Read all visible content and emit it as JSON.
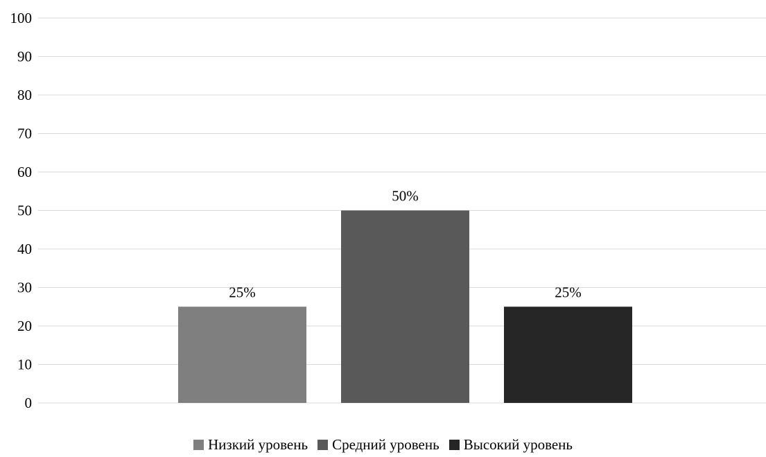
{
  "chart_data": {
    "type": "bar",
    "title": "",
    "xlabel": "",
    "ylabel": "",
    "ylim": [
      0,
      100
    ],
    "yticks": [
      0,
      10,
      20,
      30,
      40,
      50,
      60,
      70,
      80,
      90,
      100
    ],
    "grid": true,
    "legend_position": "bottom",
    "categories": [
      "Низкий уровень",
      "Средний уровень",
      "Высокий уровень"
    ],
    "values": [
      25,
      50,
      25
    ],
    "data_labels": [
      "25%",
      "50%",
      "25%"
    ],
    "colors": [
      "#7f7f7f",
      "#595959",
      "#262626"
    ]
  },
  "legend": {
    "items": [
      {
        "label": "Низкий уровень",
        "color": "#7f7f7f"
      },
      {
        "label": "Средний уровень",
        "color": "#595959"
      },
      {
        "label": "Высокий уровень",
        "color": "#262626"
      }
    ]
  }
}
